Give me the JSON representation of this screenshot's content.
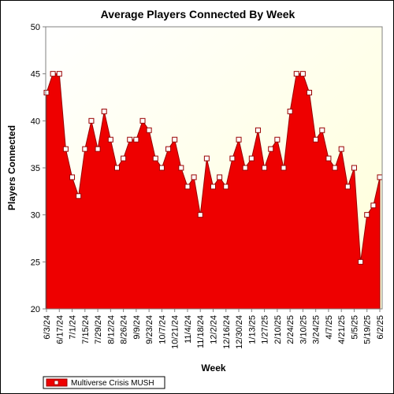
{
  "chart_data": {
    "type": "area",
    "title": "Average Players Connected By Week",
    "xlabel": "Week",
    "ylabel": "Players Connected",
    "ylim": [
      20,
      50
    ],
    "yticks": [
      20,
      25,
      30,
      35,
      40,
      45,
      50
    ],
    "grid": false,
    "legend_position": "bottom-left",
    "x": [
      "6/3/24",
      "6/10/24",
      "6/17/24",
      "6/24/24",
      "7/1/24",
      "7/8/24",
      "7/15/24",
      "7/22/24",
      "7/29/24",
      "8/5/24",
      "8/12/24",
      "8/19/24",
      "8/26/24",
      "9/2/24",
      "9/9/24",
      "9/16/24",
      "9/23/24",
      "9/30/24",
      "10/7/24",
      "10/14/24",
      "10/21/24",
      "10/28/24",
      "11/4/24",
      "11/11/24",
      "11/18/24",
      "11/25/24",
      "12/2/24",
      "12/9/24",
      "12/16/24",
      "12/23/24",
      "12/30/24",
      "1/6/25",
      "1/13/25",
      "1/20/25",
      "1/27/25",
      "2/3/25",
      "2/10/25",
      "2/17/25",
      "2/24/25",
      "3/3/25",
      "3/10/25",
      "3/17/25",
      "3/24/25",
      "3/31/25",
      "4/7/25",
      "4/14/25",
      "4/21/25",
      "4/28/25",
      "5/5/25",
      "5/12/25",
      "5/19/25",
      "5/26/25",
      "6/2/25"
    ],
    "x_tick_labels": [
      "6/3/24",
      "6/17/24",
      "7/1/24",
      "7/15/24",
      "7/29/24",
      "8/12/24",
      "8/26/24",
      "9/9/24",
      "9/23/24",
      "10/7/24",
      "10/21/24",
      "11/4/24",
      "11/18/24",
      "12/2/24",
      "12/16/24",
      "12/30/24",
      "1/13/25",
      "1/27/25",
      "2/10/25",
      "2/24/25",
      "3/10/25",
      "3/24/25",
      "4/7/25",
      "4/21/25",
      "5/5/25",
      "5/19/25",
      "6/2/25"
    ],
    "series": [
      {
        "name": "Multiverse Crisis MUSH",
        "color": "#ee0000",
        "values": [
          43,
          45,
          45,
          37,
          34,
          32,
          37,
          40,
          37,
          41,
          38,
          35,
          36,
          38,
          38,
          40,
          39,
          36,
          35,
          37,
          38,
          35,
          33,
          34,
          30,
          36,
          33,
          34,
          33,
          36,
          38,
          35,
          36,
          39,
          35,
          37,
          38,
          35,
          41,
          45,
          45,
          43,
          38,
          39,
          36,
          35,
          37,
          33,
          35,
          25,
          30,
          31,
          34
        ]
      }
    ]
  },
  "colors": {
    "plot_bg_top": "#ffffff",
    "plot_bg_bottom": "#ffffe0",
    "area_fill": "#ee0000",
    "area_edge": "#990000"
  }
}
